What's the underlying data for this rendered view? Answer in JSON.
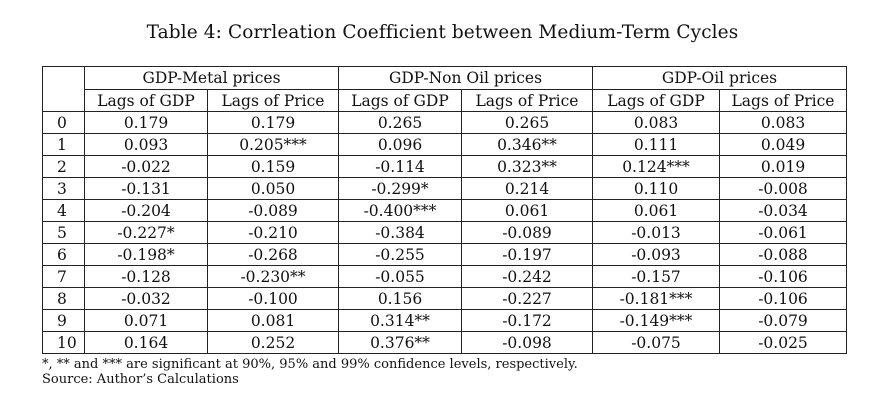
{
  "caption": "Table 4: Corrleation Coefficient between Medium-Term Cycles",
  "groups": [
    "GDP-Metal prices",
    "GDP-Non Oil prices",
    "GDP-Oil prices"
  ],
  "subheaders": [
    "Lags of GDP",
    "Lags of Price",
    "Lags of GDP",
    "Lags of Price",
    "Lags of GDP",
    "Lags of Price"
  ],
  "rows": [
    {
      "lag": "0",
      "values": [
        "0.179",
        "0.179",
        "0.265",
        "0.265",
        "0.083",
        "0.083"
      ]
    },
    {
      "lag": "1",
      "values": [
        "0.093",
        "0.205***",
        "0.096",
        "0.346**",
        "0.111",
        "0.049"
      ]
    },
    {
      "lag": "2",
      "values": [
        "-0.022",
        "0.159",
        "-0.114",
        "0.323**",
        "0.124***",
        "0.019"
      ]
    },
    {
      "lag": "3",
      "values": [
        "-0.131",
        "0.050",
        "-0.299*",
        "0.214",
        "0.110",
        "-0.008"
      ]
    },
    {
      "lag": "4",
      "values": [
        "-0.204",
        "-0.089",
        "-0.400***",
        "0.061",
        "0.061",
        "-0.034"
      ]
    },
    {
      "lag": "5",
      "values": [
        "-0.227*",
        "-0.210",
        "-0.384",
        "-0.089",
        "-0.013",
        "-0.061"
      ]
    },
    {
      "lag": "6",
      "values": [
        "-0.198*",
        "-0.268",
        "-0.255",
        "-0.197",
        "-0.093",
        "-0.088"
      ]
    },
    {
      "lag": "7",
      "values": [
        "-0.128",
        "-0.230**",
        "-0.055",
        "-0.242",
        "-0.157",
        "-0.106"
      ]
    },
    {
      "lag": "8",
      "values": [
        "-0.032",
        "-0.100",
        "0.156",
        "-0.227",
        "-0.181***",
        "-0.106"
      ]
    },
    {
      "lag": "9",
      "values": [
        "0.071",
        "0.081",
        "0.314**",
        "-0.172",
        "-0.149***",
        "-0.079"
      ]
    },
    {
      "lag": "10",
      "values": [
        "0.164",
        "0.252",
        "0.376**",
        "-0.098",
        "-0.075",
        "-0.025"
      ]
    }
  ],
  "notes": {
    "significance": "*, ** and *** are significant at 90%, 95% and 99% confidence levels, respectively.",
    "source": "Source: Author’s Calculations"
  }
}
